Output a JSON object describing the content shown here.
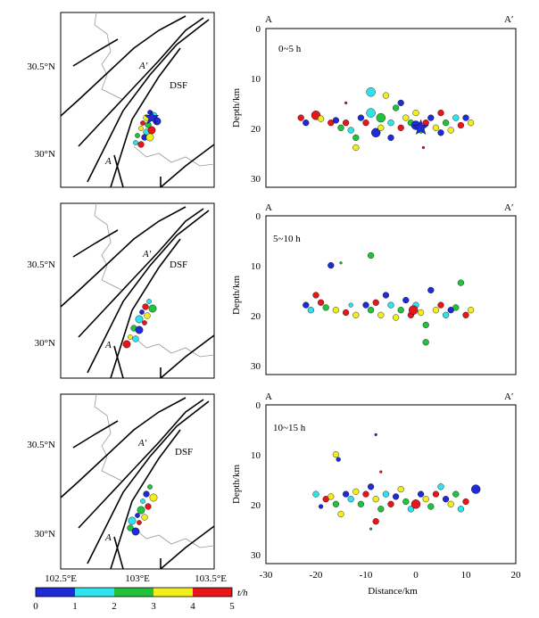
{
  "figure": {
    "distance_label": "Distance/km",
    "depth_label": "Depth/km",
    "section_start": "A",
    "section_end": "A′",
    "fault_label": "DSF",
    "x_ticks": [
      "-30",
      "-20",
      "-10",
      "0",
      "10",
      "20"
    ],
    "depth_ticks": [
      "0",
      "10",
      "20",
      "30"
    ],
    "lat_ticks": [
      "30.5°N",
      "30°N"
    ],
    "lon_ticks": [
      "102.5°E",
      "103°E",
      "103.5°E"
    ],
    "colorbar": {
      "unit": "t/h",
      "ticks": [
        "0",
        "1",
        "2",
        "3",
        "4",
        "5"
      ],
      "colors": [
        "#1f2bd6",
        "#2fe3ee",
        "#22c33a",
        "#f2ee1c",
        "#e8151b"
      ]
    },
    "panels": [
      {
        "time_label": "0~5 h"
      },
      {
        "time_label": "5~10 h"
      },
      {
        "time_label": "10~15 h"
      }
    ]
  },
  "chart_data": [
    {
      "type": "scatter",
      "title": "0~5 h",
      "xlabel": "Distance/km",
      "ylabel": "Depth/km",
      "xlim": [
        -30,
        20
      ],
      "ylim": [
        32,
        0
      ],
      "color_scale": {
        "name": "t/h",
        "range": [
          0,
          5
        ]
      },
      "points": [
        {
          "x": -23,
          "y": 18,
          "t": 4.5,
          "m": 1
        },
        {
          "x": -22,
          "y": 19,
          "t": 0.5,
          "m": 1
        },
        {
          "x": -20,
          "y": 17.5,
          "t": 4.5,
          "m": 2
        },
        {
          "x": -19,
          "y": 18.2,
          "t": 3.5,
          "m": 1
        },
        {
          "x": -17,
          "y": 19,
          "t": 4.5,
          "m": 1
        },
        {
          "x": -16,
          "y": 18.5,
          "t": 0.5,
          "m": 1
        },
        {
          "x": -15,
          "y": 20,
          "t": 2.5,
          "m": 1
        },
        {
          "x": -14,
          "y": 19,
          "t": 4.5,
          "m": 1.5
        },
        {
          "x": -13,
          "y": 20.5,
          "t": 1.5,
          "m": 1
        },
        {
          "x": -12,
          "y": 22,
          "t": 2.5,
          "m": 1
        },
        {
          "x": -11,
          "y": 18,
          "t": 0.5,
          "m": 1.5
        },
        {
          "x": -10,
          "y": 19,
          "t": 4.5,
          "m": 1
        },
        {
          "x": -9,
          "y": 17,
          "t": 1.5,
          "m": 2
        },
        {
          "x": -9,
          "y": 12.8,
          "t": 1.5,
          "m": 2
        },
        {
          "x": -8,
          "y": 21,
          "t": 0.5,
          "m": 2
        },
        {
          "x": -7,
          "y": 20,
          "t": 3.5,
          "m": 1
        },
        {
          "x": -7,
          "y": 18,
          "t": 2.5,
          "m": 2
        },
        {
          "x": -6,
          "y": 13.5,
          "t": 3.5,
          "m": 1
        },
        {
          "x": -5,
          "y": 22,
          "t": 0.5,
          "m": 1
        },
        {
          "x": -5,
          "y": 19,
          "t": 1.5,
          "m": 1
        },
        {
          "x": -4,
          "y": 16,
          "t": 2.5,
          "m": 1
        },
        {
          "x": -3,
          "y": 15,
          "t": 0.5,
          "m": 1
        },
        {
          "x": -3,
          "y": 20,
          "t": 4.5,
          "m": 1
        },
        {
          "x": -2,
          "y": 18,
          "t": 3.5,
          "m": 1.5
        },
        {
          "x": -1,
          "y": 19,
          "t": 2.5,
          "m": 1
        },
        {
          "x": 0,
          "y": 17,
          "t": 3.5,
          "m": 1
        },
        {
          "x": 0,
          "y": 19.5,
          "t": 0.5,
          "m": 2
        },
        {
          "x": 1,
          "y": 20.5,
          "t": 2.5,
          "m": 1
        },
        {
          "x": 1.5,
          "y": 24,
          "t": 4.5,
          "m": 0
        },
        {
          "x": 2,
          "y": 19,
          "t": 4.5,
          "m": 1
        },
        {
          "x": 3,
          "y": 18,
          "t": 0.5,
          "m": 1
        },
        {
          "x": 4,
          "y": 20,
          "t": 3.5,
          "m": 1
        },
        {
          "x": 5,
          "y": 17,
          "t": 4.5,
          "m": 1
        },
        {
          "x": 5,
          "y": 21,
          "t": 0.5,
          "m": 1
        },
        {
          "x": 6,
          "y": 19,
          "t": 2.5,
          "m": 1
        },
        {
          "x": 7,
          "y": 20.5,
          "t": 3.5,
          "m": 1
        },
        {
          "x": 8,
          "y": 18,
          "t": 1.5,
          "m": 1
        },
        {
          "x": 9,
          "y": 19.5,
          "t": 4.5,
          "m": 1
        },
        {
          "x": 10,
          "y": 18,
          "t": 0.5,
          "m": 1.5
        },
        {
          "x": 11,
          "y": 19,
          "t": 3.5,
          "m": 1
        },
        {
          "x": -12,
          "y": 24,
          "t": 3.5,
          "m": 1
        },
        {
          "x": -14,
          "y": 15,
          "t": 4.5,
          "m": 0
        },
        {
          "x": 1,
          "y": 20,
          "t": 0.5,
          "m": 2,
          "star": true
        }
      ]
    },
    {
      "type": "scatter",
      "title": "5~10 h",
      "xlabel": "Distance/km",
      "ylabel": "Depth/km",
      "xlim": [
        -30,
        20
      ],
      "ylim": [
        32,
        0
      ],
      "color_scale": {
        "name": "t/h",
        "range": [
          0,
          5
        ]
      },
      "points": [
        {
          "x": -17,
          "y": 10,
          "t": 0.5,
          "m": 1
        },
        {
          "x": -15,
          "y": 9.5,
          "t": 2.5,
          "m": 0
        },
        {
          "x": -9,
          "y": 8,
          "t": 2.5,
          "m": 1
        },
        {
          "x": -22,
          "y": 18,
          "t": 0.5,
          "m": 1
        },
        {
          "x": -21,
          "y": 19,
          "t": 1.5,
          "m": 1
        },
        {
          "x": -20,
          "y": 16,
          "t": 4.5,
          "m": 1
        },
        {
          "x": -18,
          "y": 18.5,
          "t": 2.5,
          "m": 1
        },
        {
          "x": -16,
          "y": 19,
          "t": 3.5,
          "m": 1
        },
        {
          "x": -14,
          "y": 19.5,
          "t": 4.5,
          "m": 1
        },
        {
          "x": -13,
          "y": 18,
          "t": 1.5,
          "m": 0.5
        },
        {
          "x": -12,
          "y": 20,
          "t": 3.5,
          "m": 1
        },
        {
          "x": -10,
          "y": 18,
          "t": 0.5,
          "m": 1
        },
        {
          "x": -9,
          "y": 19,
          "t": 2.5,
          "m": 1
        },
        {
          "x": -8,
          "y": 17.5,
          "t": 4.5,
          "m": 1
        },
        {
          "x": -7,
          "y": 20,
          "t": 3.5,
          "m": 1
        },
        {
          "x": -6,
          "y": 16,
          "t": 0.5,
          "m": 1
        },
        {
          "x": -5,
          "y": 18,
          "t": 1.5,
          "m": 1
        },
        {
          "x": -4,
          "y": 20.5,
          "t": 3.5,
          "m": 1
        },
        {
          "x": -3,
          "y": 19,
          "t": 2.5,
          "m": 1
        },
        {
          "x": -2,
          "y": 17,
          "t": 0.5,
          "m": 1
        },
        {
          "x": -1,
          "y": 20,
          "t": 4.5,
          "m": 1.5
        },
        {
          "x": 0,
          "y": 18,
          "t": 1.5,
          "m": 1
        },
        {
          "x": 1,
          "y": 19.5,
          "t": 3.5,
          "m": 1
        },
        {
          "x": 2,
          "y": 22,
          "t": 2.5,
          "m": 1
        },
        {
          "x": 2,
          "y": 25.5,
          "t": 2.5,
          "m": 1
        },
        {
          "x": 3,
          "y": 15,
          "t": 0.5,
          "m": 1
        },
        {
          "x": 4,
          "y": 19,
          "t": 3.5,
          "m": 1
        },
        {
          "x": 5,
          "y": 18,
          "t": 4.5,
          "m": 1
        },
        {
          "x": 6,
          "y": 20,
          "t": 1.5,
          "m": 1
        },
        {
          "x": 7,
          "y": 19,
          "t": 0.5,
          "m": 1
        },
        {
          "x": 8,
          "y": 18.5,
          "t": 2.5,
          "m": 1
        },
        {
          "x": 9,
          "y": 13.5,
          "t": 2.5,
          "m": 1
        },
        {
          "x": 10,
          "y": 20,
          "t": 4.5,
          "m": 1
        },
        {
          "x": 11,
          "y": 19,
          "t": 3.5,
          "m": 1
        },
        {
          "x": -19,
          "y": 17.5,
          "t": 4.5,
          "m": 1
        },
        {
          "x": -0.5,
          "y": 19,
          "t": 4.5,
          "m": 2
        }
      ]
    },
    {
      "type": "scatter",
      "title": "10~15 h",
      "xlabel": "Distance/km",
      "ylabel": "Depth/km",
      "xlim": [
        -30,
        20
      ],
      "ylim": [
        32,
        0
      ],
      "color_scale": {
        "name": "t/h",
        "range": [
          0,
          5
        ]
      },
      "points": [
        {
          "x": -8,
          "y": 6,
          "t": 0.5,
          "m": 0
        },
        {
          "x": -16,
          "y": 10,
          "t": 3.5,
          "m": 1
        },
        {
          "x": -15.5,
          "y": 11,
          "t": 0.5,
          "m": 0.5
        },
        {
          "x": -20,
          "y": 18,
          "t": 1.5,
          "m": 1.5
        },
        {
          "x": -18,
          "y": 19,
          "t": 4.5,
          "m": 1
        },
        {
          "x": -17,
          "y": 18.5,
          "t": 3.5,
          "m": 1
        },
        {
          "x": -16,
          "y": 20,
          "t": 2.5,
          "m": 1
        },
        {
          "x": -15,
          "y": 22,
          "t": 3.5,
          "m": 1
        },
        {
          "x": -14,
          "y": 18,
          "t": 0.5,
          "m": 1
        },
        {
          "x": -13,
          "y": 19,
          "t": 1.5,
          "m": 1
        },
        {
          "x": -12,
          "y": 17.5,
          "t": 3.5,
          "m": 1
        },
        {
          "x": -11,
          "y": 20,
          "t": 2.5,
          "m": 1
        },
        {
          "x": -10,
          "y": 18,
          "t": 4.5,
          "m": 1
        },
        {
          "x": -9,
          "y": 16.5,
          "t": 0.5,
          "m": 1
        },
        {
          "x": -8,
          "y": 19,
          "t": 3.5,
          "m": 1
        },
        {
          "x": -7,
          "y": 21,
          "t": 2.5,
          "m": 1
        },
        {
          "x": -6,
          "y": 18,
          "t": 1.5,
          "m": 1
        },
        {
          "x": -5,
          "y": 20,
          "t": 4.5,
          "m": 1
        },
        {
          "x": -4,
          "y": 18.5,
          "t": 0.5,
          "m": 1
        },
        {
          "x": -3,
          "y": 17,
          "t": 3.5,
          "m": 1
        },
        {
          "x": -2,
          "y": 19.5,
          "t": 2.5,
          "m": 1
        },
        {
          "x": -1,
          "y": 21,
          "t": 1.5,
          "m": 1
        },
        {
          "x": 0,
          "y": 20,
          "t": 4.5,
          "m": 2
        },
        {
          "x": 1,
          "y": 18,
          "t": 0.5,
          "m": 1
        },
        {
          "x": 2,
          "y": 19,
          "t": 3.5,
          "m": 1
        },
        {
          "x": 3,
          "y": 20.5,
          "t": 2.5,
          "m": 1
        },
        {
          "x": 4,
          "y": 18,
          "t": 4.5,
          "m": 1
        },
        {
          "x": 5,
          "y": 16.5,
          "t": 1.5,
          "m": 1
        },
        {
          "x": 6,
          "y": 19,
          "t": 0.5,
          "m": 1
        },
        {
          "x": 7,
          "y": 20,
          "t": 3.5,
          "m": 1
        },
        {
          "x": 8,
          "y": 18,
          "t": 2.5,
          "m": 1
        },
        {
          "x": 9,
          "y": 21,
          "t": 1.5,
          "m": 1
        },
        {
          "x": 10,
          "y": 19.5,
          "t": 4.5,
          "m": 1
        },
        {
          "x": 12,
          "y": 17,
          "t": 0.5,
          "m": 2
        },
        {
          "x": -8,
          "y": 23.5,
          "t": 4.5,
          "m": 1.5
        },
        {
          "x": -9,
          "y": 25,
          "t": 2.5,
          "m": 0
        },
        {
          "x": -7,
          "y": 13.5,
          "t": 4.5,
          "m": 0
        },
        {
          "x": -19,
          "y": 20.5,
          "t": 0.5,
          "m": 0.5
        }
      ]
    }
  ],
  "map_events": [
    [
      [
        100,
        112
      ],
      [
        96,
        118
      ],
      [
        104,
        116
      ],
      [
        92,
        124
      ],
      [
        98,
        126
      ],
      [
        108,
        122
      ],
      [
        90,
        130
      ],
      [
        96,
        134
      ],
      [
        102,
        132
      ],
      [
        86,
        138
      ],
      [
        94,
        140
      ],
      [
        100,
        140
      ],
      [
        84,
        146
      ],
      [
        90,
        148
      ]
    ],
    [
      [
        99,
        110
      ],
      [
        95,
        116
      ],
      [
        103,
        118
      ],
      [
        91,
        122
      ],
      [
        97,
        126
      ],
      [
        88,
        130
      ],
      [
        94,
        134
      ],
      [
        82,
        140
      ],
      [
        88,
        142
      ],
      [
        78,
        150
      ],
      [
        84,
        152
      ],
      [
        74,
        158
      ]
    ],
    [
      [
        100,
        104
      ],
      [
        96,
        112
      ],
      [
        104,
        116
      ],
      [
        92,
        120
      ],
      [
        98,
        126
      ],
      [
        90,
        130
      ],
      [
        86,
        136
      ],
      [
        94,
        138
      ],
      [
        80,
        142
      ],
      [
        88,
        144
      ],
      [
        78,
        150
      ],
      [
        84,
        154
      ]
    ]
  ]
}
